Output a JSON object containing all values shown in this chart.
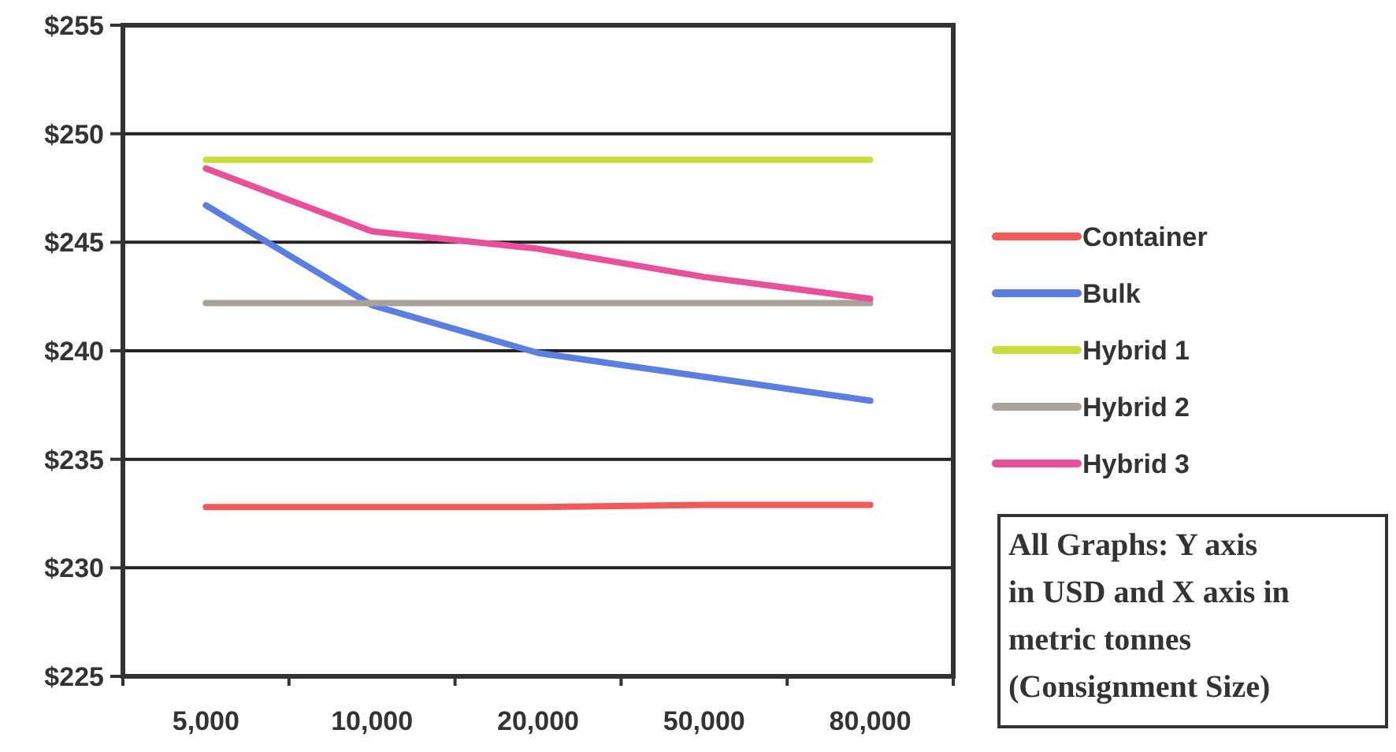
{
  "chart_data": {
    "type": "line",
    "categories": [
      "5,000",
      "10,000",
      "20,000",
      "50,000",
      "80,000"
    ],
    "series": [
      {
        "name": "Container",
        "color": "#f25a5a",
        "values": [
          232.8,
          232.8,
          232.8,
          232.9,
          232.9
        ]
      },
      {
        "name": "Bulk",
        "color": "#5b7fe0",
        "values": [
          246.7,
          242.1,
          239.9,
          238.8,
          237.7
        ]
      },
      {
        "name": "Hybrid 1",
        "color": "#c8dc3c",
        "values": [
          248.8,
          248.8,
          248.8,
          248.8,
          248.8
        ]
      },
      {
        "name": "Hybrid 2",
        "color": "#a8a29a",
        "values": [
          242.2,
          242.2,
          242.2,
          242.2,
          242.2
        ]
      },
      {
        "name": "Hybrid 3",
        "color": "#e8509a",
        "values": [
          248.4,
          245.5,
          244.7,
          243.4,
          242.4
        ]
      }
    ],
    "ylim": [
      225,
      255
    ],
    "yticks": [
      {
        "value": 225,
        "label": "$225"
      },
      {
        "value": 230,
        "label": "$230"
      },
      {
        "value": 235,
        "label": "$235"
      },
      {
        "value": 240,
        "label": "$240"
      },
      {
        "value": 245,
        "label": "$245"
      },
      {
        "value": 250,
        "label": "$250"
      },
      {
        "value": 255,
        "label": "$255"
      }
    ],
    "grid": "y",
    "legend": "right",
    "marker": "none",
    "line_style": "solid",
    "annotations": [
      "All Graphs: Y axis in USD and X axis in metric tonnes (Consignment Size)"
    ]
  }
}
